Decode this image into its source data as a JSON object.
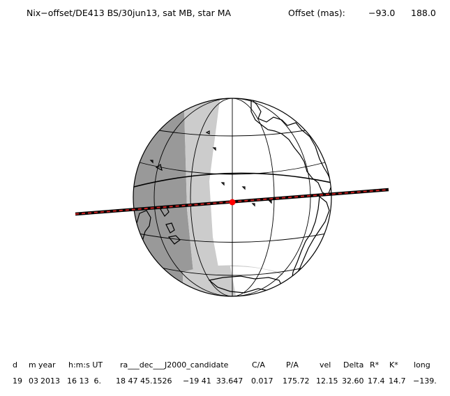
{
  "header": {
    "title": "Nix−offset/DE413 BS/30jun13, sat MB, star MA",
    "offset_label": "Offset (mas):",
    "offset_x": "−93.0",
    "offset_y": "188.0"
  },
  "table": {
    "columns": [
      {
        "key": "d",
        "header": "d",
        "value": "19"
      },
      {
        "key": "m",
        "header": "m",
        "value": "03"
      },
      {
        "key": "year",
        "header": "year",
        "value": "2013"
      },
      {
        "key": "hms",
        "header": "h:m:s UT",
        "value": "16 13  6."
      },
      {
        "key": "ra",
        "header": "ra___dec___J2000_candidate",
        "value": "18 47 45.1526"
      },
      {
        "key": "dec",
        "header": "",
        "value": "−19 41  33.647"
      },
      {
        "key": "ca",
        "header": "C/A",
        "value": "0.017"
      },
      {
        "key": "pa",
        "header": "P/A",
        "value": "175.72"
      },
      {
        "key": "vel",
        "header": "vel",
        "value": "12.15"
      },
      {
        "key": "delta",
        "header": "Delta",
        "value": "32.60"
      },
      {
        "key": "rstar",
        "header": "R*",
        "value": "17.4"
      },
      {
        "key": "kstar",
        "header": "K*",
        "value": "14.7"
      },
      {
        "key": "long",
        "header": "long",
        "value": "−139."
      }
    ]
  },
  "colors": {
    "night": "#999999",
    "twilight": "#cccccc",
    "day": "#ffffff",
    "track": "#000000",
    "track_dash": "#cc2222",
    "center_dot": "#ff0000"
  }
}
